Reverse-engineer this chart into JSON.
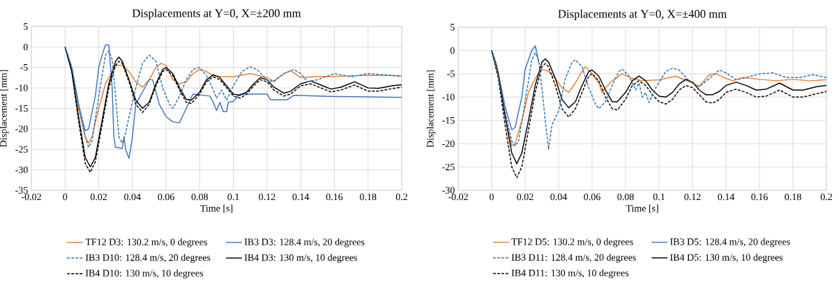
{
  "chart_data": [
    {
      "type": "line",
      "title": "Displacements at Y=0, X=±200 mm",
      "xlabel": "Time [s]",
      "ylabel": "Displacement [mm]",
      "xlim": [
        -0.02,
        0.2
      ],
      "ylim": [
        -35,
        5
      ],
      "xticks": [
        -0.02,
        0,
        0.02,
        0.04,
        0.06,
        0.08,
        0.1,
        0.12,
        0.14,
        0.16,
        0.18,
        0.2
      ],
      "yticks": [
        -35,
        -30,
        -25,
        -20,
        -15,
        -10,
        -5,
        0,
        5
      ],
      "grid": true,
      "legend": "bottom",
      "series": [
        {
          "name": "TF12 D3: 130.2 m/s, 0 degrees",
          "color": "#ed7d31",
          "line_style": "solid",
          "x": [
            0,
            0.004,
            0.008,
            0.012,
            0.014,
            0.016,
            0.02,
            0.024,
            0.028,
            0.03,
            0.034,
            0.038,
            0.042,
            0.046,
            0.05,
            0.054,
            0.057,
            0.06,
            0.064,
            0.068,
            0.072,
            0.076,
            0.08,
            0.084,
            0.088,
            0.092,
            0.1,
            0.11,
            0.12,
            0.124,
            0.13,
            0.134,
            0.14,
            0.15,
            0.16,
            0.18,
            0.2
          ],
          "values": [
            0,
            -5,
            -15,
            -22,
            -23.5,
            -22,
            -15,
            -9,
            -6,
            -4.5,
            -4.5,
            -6,
            -8.5,
            -9.8,
            -8,
            -5,
            -4,
            -4.5,
            -8,
            -9,
            -8.5,
            -6.5,
            -5.5,
            -6,
            -7,
            -7.2,
            -7.3,
            -6.5,
            -7.5,
            -8.3,
            -6.5,
            -5.8,
            -7.5,
            -7.2,
            -7.2,
            -6.9,
            -7
          ]
        },
        {
          "name": "IB3 D3: 128.4 m/s, 20 degrees",
          "color": "#4472c4",
          "line_style": "solid",
          "x": [
            0,
            0.004,
            0.008,
            0.012,
            0.014,
            0.018,
            0.02,
            0.022,
            0.024,
            0.026,
            0.028,
            0.029,
            0.03,
            0.034,
            0.035,
            0.036,
            0.038,
            0.04,
            0.042,
            0.046,
            0.05,
            0.052,
            0.056,
            0.06,
            0.064,
            0.068,
            0.072,
            0.076,
            0.08,
            0.086,
            0.088,
            0.09,
            0.092,
            0.094,
            0.096,
            0.097,
            0.1,
            0.104,
            0.12,
            0.122,
            0.132,
            0.136,
            0.16,
            0.2
          ],
          "values": [
            0,
            -5,
            -14,
            -20.5,
            -20,
            -12,
            -5,
            -2,
            0.5,
            0.5,
            -10,
            -22,
            -24.5,
            -24.8,
            -22,
            -25,
            -27.2,
            -22,
            -14,
            -11,
            -8,
            -8,
            -14,
            -17,
            -18.3,
            -18.5,
            -15,
            -11.5,
            -11.7,
            -12,
            -13.5,
            -15.5,
            -13.5,
            -15.8,
            -15.8,
            -13.5,
            -13.3,
            -11.5,
            -11.5,
            -12.9,
            -12.9,
            -11.8,
            -12.1,
            -12.3
          ]
        },
        {
          "name": "IB3 D10: 128.4 m/s, 20 degrees",
          "color": "#2e75b6",
          "line_style": "dashed",
          "x": [
            0,
            0.004,
            0.008,
            0.012,
            0.014,
            0.016,
            0.02,
            0.024,
            0.026,
            0.028,
            0.03,
            0.032,
            0.034,
            0.036,
            0.038,
            0.042,
            0.046,
            0.05,
            0.054,
            0.058,
            0.062,
            0.064,
            0.068,
            0.072,
            0.076,
            0.08,
            0.084,
            0.087,
            0.09,
            0.093,
            0.096,
            0.1,
            0.105,
            0.11,
            0.114,
            0.12,
            0.124,
            0.13,
            0.136,
            0.14,
            0.144,
            0.15,
            0.16,
            0.17,
            0.18,
            0.19,
            0.2
          ],
          "values": [
            0,
            -5,
            -14,
            -22,
            -24.5,
            -23,
            -12,
            -2,
            -1,
            -3,
            -12,
            -22,
            -23.5,
            -21,
            -17,
            -10,
            -4,
            -2,
            -3.5,
            -10,
            -14,
            -15,
            -12,
            -8,
            -5.5,
            -5,
            -7,
            -9.5,
            -12.5,
            -10.5,
            -13,
            -9.5,
            -6,
            -4.8,
            -5.5,
            -8,
            -8.5,
            -6.5,
            -5.5,
            -6.5,
            -8.5,
            -8,
            -6.5,
            -7.3,
            -6.5,
            -6.8,
            -7.2
          ]
        },
        {
          "name": "IB4 D3: 130 m/s, 10 degrees",
          "color": "#000000",
          "line_style": "solid",
          "x": [
            0,
            0.004,
            0.008,
            0.012,
            0.015,
            0.018,
            0.022,
            0.026,
            0.03,
            0.032,
            0.034,
            0.038,
            0.042,
            0.046,
            0.05,
            0.054,
            0.058,
            0.06,
            0.064,
            0.068,
            0.072,
            0.075,
            0.08,
            0.084,
            0.088,
            0.092,
            0.096,
            0.1,
            0.104,
            0.108,
            0.112,
            0.116,
            0.12,
            0.124,
            0.13,
            0.134,
            0.14,
            0.146,
            0.152,
            0.158,
            0.164,
            0.172,
            0.18,
            0.186,
            0.194,
            0.2
          ],
          "values": [
            0,
            -6,
            -17,
            -27,
            -29.3,
            -27,
            -18,
            -9,
            -3.5,
            -2.5,
            -3.5,
            -8,
            -13,
            -15,
            -13.5,
            -9,
            -5.5,
            -5,
            -6.5,
            -10,
            -12.8,
            -13,
            -11,
            -8,
            -6.8,
            -7.5,
            -9.5,
            -11.5,
            -11.8,
            -11,
            -9,
            -7.5,
            -8,
            -9.8,
            -11.3,
            -10.8,
            -9,
            -8.3,
            -9.3,
            -10.3,
            -9.8,
            -8.5,
            -10,
            -10.1,
            -9.5,
            -9.2
          ]
        },
        {
          "name": "IB4 D10: 130 m/s, 10 degrees",
          "color": "#000000",
          "line_style": "dashed",
          "x": [
            0,
            0.004,
            0.008,
            0.012,
            0.015,
            0.018,
            0.022,
            0.026,
            0.03,
            0.032,
            0.034,
            0.038,
            0.042,
            0.046,
            0.05,
            0.054,
            0.058,
            0.06,
            0.064,
            0.068,
            0.072,
            0.075,
            0.08,
            0.084,
            0.088,
            0.092,
            0.096,
            0.1,
            0.104,
            0.108,
            0.112,
            0.116,
            0.12,
            0.124,
            0.13,
            0.134,
            0.14,
            0.146,
            0.152,
            0.158,
            0.164,
            0.172,
            0.18,
            0.186,
            0.194,
            0.2
          ],
          "values": [
            0,
            -6,
            -18,
            -28.5,
            -30.6,
            -28,
            -19,
            -10,
            -4.5,
            -3.5,
            -4,
            -8.5,
            -14,
            -16,
            -14,
            -9.5,
            -6,
            -5.5,
            -7,
            -10.5,
            -13.5,
            -13.8,
            -11.5,
            -8.5,
            -7.3,
            -8,
            -10,
            -12,
            -12.5,
            -11.5,
            -9.5,
            -8,
            -8.5,
            -10.5,
            -12,
            -11.5,
            -9.5,
            -9,
            -10,
            -11,
            -10.5,
            -9.3,
            -10.8,
            -10.8,
            -10.2,
            -9.8
          ]
        }
      ]
    },
    {
      "type": "line",
      "title": "Displacements at Y=0, X=±400 mm",
      "xlabel": "Time [s]",
      "ylabel": "Displacement [mm]",
      "xlim": [
        -0.02,
        0.2
      ],
      "ylim": [
        -30,
        5
      ],
      "xticks": [
        -0.02,
        0,
        0.02,
        0.04,
        0.06,
        0.08,
        0.1,
        0.12,
        0.14,
        0.16,
        0.18,
        0.2
      ],
      "yticks": [
        -30,
        -25,
        -20,
        -15,
        -10,
        -5,
        0,
        5
      ],
      "grid": true,
      "legend": "bottom",
      "series": [
        {
          "name": "TF12 D5: 130.2 m/s, 0 degrees",
          "color": "#ed7d31",
          "line_style": "solid",
          "x": [
            0,
            0.003,
            0.008,
            0.012,
            0.014,
            0.018,
            0.022,
            0.026,
            0.03,
            0.034,
            0.038,
            0.042,
            0.046,
            0.05,
            0.054,
            0.056,
            0.06,
            0.064,
            0.066,
            0.068,
            0.072,
            0.078,
            0.084,
            0.09,
            0.1,
            0.11,
            0.12,
            0.124,
            0.13,
            0.134,
            0.14,
            0.144,
            0.15,
            0.16,
            0.17,
            0.18,
            0.19,
            0.2
          ],
          "values": [
            0,
            -3,
            -14,
            -20.5,
            -20,
            -15,
            -9,
            -6,
            -4,
            -4.5,
            -6,
            -8,
            -9,
            -7,
            -4.5,
            -3.5,
            -5,
            -7,
            -9,
            -8,
            -6.5,
            -5,
            -6,
            -6.5,
            -6.3,
            -5.5,
            -7,
            -7.7,
            -5.2,
            -5,
            -6,
            -6.5,
            -5.8,
            -6.2,
            -6.5,
            -6.2,
            -6.5,
            -6.3
          ]
        },
        {
          "name": "IB3 D5: 128.4 m/s, 20 degrees",
          "color": "#4472c4",
          "line_style": "solid",
          "x": [
            0,
            0.004,
            0.008,
            0.012,
            0.014,
            0.018,
            0.02,
            0.022,
            0.024,
            0.026,
            0.027,
            0.028
          ],
          "values": [
            0,
            -5,
            -12,
            -17,
            -16.5,
            -10,
            -4,
            -2,
            0,
            1,
            -0.5,
            -2.5
          ]
        },
        {
          "name": "IB3 D11: 128.4 m/s, 20 degrees",
          "color": "#2e75b6",
          "line_style": "dashed",
          "x": [
            0,
            0.004,
            0.008,
            0.012,
            0.014,
            0.016,
            0.02,
            0.024,
            0.026,
            0.028,
            0.03,
            0.032,
            0.034,
            0.036,
            0.04,
            0.044,
            0.048,
            0.05,
            0.054,
            0.058,
            0.062,
            0.064,
            0.068,
            0.072,
            0.076,
            0.078,
            0.082,
            0.086,
            0.088,
            0.09,
            0.092,
            0.094,
            0.098,
            0.104,
            0.108,
            0.112,
            0.118,
            0.124,
            0.13,
            0.136,
            0.14,
            0.146,
            0.152,
            0.16,
            0.168,
            0.176,
            0.184,
            0.192,
            0.2
          ],
          "values": [
            0,
            -5,
            -13,
            -19.5,
            -20.5,
            -19.5,
            -11,
            -2,
            -0.5,
            -2,
            -8,
            -15,
            -21.2,
            -16,
            -13,
            -6,
            -2.5,
            -2,
            -3.5,
            -8,
            -11.5,
            -12.5,
            -11,
            -7.5,
            -4.5,
            -4,
            -5.5,
            -8.5,
            -7,
            -10,
            -9,
            -11.2,
            -8,
            -4.5,
            -3.8,
            -4.2,
            -6.5,
            -7.8,
            -6,
            -4.2,
            -4.8,
            -6.3,
            -5.8,
            -5,
            -4.8,
            -5.8,
            -5.8,
            -5.2,
            -5.8
          ]
        },
        {
          "name": "IB4 D5: 130 m/s, 10 degrees",
          "color": "#000000",
          "line_style": "solid",
          "x": [
            0,
            0.004,
            0.008,
            0.012,
            0.015,
            0.018,
            0.022,
            0.026,
            0.03,
            0.032,
            0.034,
            0.038,
            0.042,
            0.046,
            0.05,
            0.054,
            0.058,
            0.06,
            0.064,
            0.068,
            0.072,
            0.075,
            0.08,
            0.084,
            0.088,
            0.092,
            0.096,
            0.1,
            0.104,
            0.108,
            0.112,
            0.116,
            0.12,
            0.124,
            0.128,
            0.132,
            0.136,
            0.14,
            0.146,
            0.152,
            0.158,
            0.164,
            0.172,
            0.18,
            0.186,
            0.194,
            0.2
          ],
          "values": [
            0,
            -5,
            -14,
            -22,
            -24.3,
            -22,
            -15,
            -7.5,
            -2.5,
            -1.8,
            -2.5,
            -6,
            -10.5,
            -12.3,
            -11,
            -7.5,
            -4.5,
            -4.2,
            -5.5,
            -8.5,
            -11,
            -11,
            -9,
            -6.5,
            -5.5,
            -6.5,
            -8.5,
            -9.8,
            -10,
            -9,
            -7.2,
            -6.2,
            -6.8,
            -8.5,
            -9.5,
            -9.5,
            -8.8,
            -7.5,
            -6.8,
            -7.5,
            -8.5,
            -8.3,
            -7,
            -8.5,
            -8.5,
            -7.8,
            -7.5
          ]
        },
        {
          "name": "IB4 D11: 130 m/s, 10 degrees",
          "color": "#000000",
          "line_style": "dashed",
          "x": [
            0,
            0.004,
            0.008,
            0.012,
            0.015,
            0.018,
            0.022,
            0.026,
            0.03,
            0.032,
            0.034,
            0.038,
            0.042,
            0.046,
            0.05,
            0.054,
            0.058,
            0.06,
            0.064,
            0.068,
            0.072,
            0.075,
            0.08,
            0.084,
            0.088,
            0.092,
            0.096,
            0.1,
            0.104,
            0.108,
            0.112,
            0.116,
            0.12,
            0.124,
            0.128,
            0.132,
            0.136,
            0.14,
            0.146,
            0.152,
            0.158,
            0.164,
            0.172,
            0.18,
            0.186,
            0.194,
            0.2
          ],
          "values": [
            0,
            -6,
            -16,
            -25,
            -27.3,
            -25,
            -17,
            -9,
            -3.5,
            -2.8,
            -3.5,
            -7.5,
            -12.5,
            -14.3,
            -12.5,
            -9,
            -5.5,
            -5,
            -6.5,
            -10,
            -12.5,
            -12.8,
            -10.5,
            -7.5,
            -6.5,
            -7.5,
            -9.5,
            -11,
            -11.5,
            -10.5,
            -8.5,
            -7.5,
            -8,
            -9.5,
            -11,
            -11.3,
            -10.5,
            -9,
            -8.3,
            -9,
            -10,
            -9.8,
            -8.5,
            -10,
            -10,
            -9.3,
            -8.8
          ]
        }
      ]
    }
  ]
}
